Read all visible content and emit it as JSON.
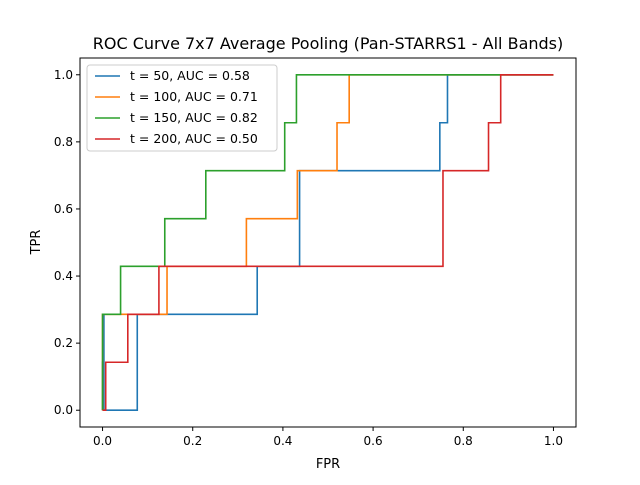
{
  "chart_data": {
    "type": "line",
    "title": "ROC Curve 7x7 Average Pooling (Pan-STARRS1 - All Bands)",
    "xlabel": "FPR",
    "ylabel": "TPR",
    "xlim": [
      -0.05,
      1.05
    ],
    "ylim": [
      -0.05,
      1.05
    ],
    "xticks": [
      0.0,
      0.2,
      0.4,
      0.6,
      0.8,
      1.0
    ],
    "yticks": [
      0.0,
      0.2,
      0.4,
      0.6,
      0.8,
      1.0
    ],
    "xtick_labels": [
      "0.0",
      "0.2",
      "0.4",
      "0.6",
      "0.8",
      "1.0"
    ],
    "ytick_labels": [
      "0.0",
      "0.2",
      "0.4",
      "0.6",
      "0.8",
      "1.0"
    ],
    "grid": false,
    "legend_position": "top-left",
    "series": [
      {
        "name": "t = 50, AUC = 0.58",
        "color": "#1f77b4",
        "points": [
          [
            0,
            0
          ],
          [
            0,
            0.143
          ],
          [
            0.003,
            0.143
          ],
          [
            0.003,
            0.286
          ],
          [
            0.003,
            0
          ],
          [
            0.077,
            0
          ],
          [
            0.077,
            0.286
          ],
          [
            0.343,
            0.286
          ],
          [
            0.343,
            0.429
          ],
          [
            0.437,
            0.429
          ],
          [
            0.437,
            0.714
          ],
          [
            0.748,
            0.714
          ],
          [
            0.748,
            0.857
          ],
          [
            0.765,
            0.857
          ],
          [
            0.765,
            1.0
          ],
          [
            1.0,
            1.0
          ]
        ]
      },
      {
        "name": "t = 100, AUC = 0.71",
        "color": "#ff7f0e",
        "points": [
          [
            0,
            0
          ],
          [
            0,
            0.286
          ],
          [
            0.143,
            0.286
          ],
          [
            0.143,
            0.429
          ],
          [
            0.319,
            0.429
          ],
          [
            0.319,
            0.571
          ],
          [
            0.432,
            0.571
          ],
          [
            0.432,
            0.714
          ],
          [
            0.52,
            0.714
          ],
          [
            0.52,
            0.857
          ],
          [
            0.547,
            0.857
          ],
          [
            0.547,
            1.0
          ],
          [
            1.0,
            1.0
          ]
        ]
      },
      {
        "name": "t = 150, AUC = 0.82",
        "color": "#2ca02c",
        "points": [
          [
            0,
            0
          ],
          [
            0,
            0.286
          ],
          [
            0.04,
            0.286
          ],
          [
            0.04,
            0.429
          ],
          [
            0.138,
            0.429
          ],
          [
            0.138,
            0.571
          ],
          [
            0.229,
            0.571
          ],
          [
            0.229,
            0.714
          ],
          [
            0.404,
            0.714
          ],
          [
            0.404,
            0.857
          ],
          [
            0.43,
            0.857
          ],
          [
            0.43,
            1.0
          ],
          [
            1.0,
            1.0
          ]
        ]
      },
      {
        "name": "t = 200, AUC = 0.50",
        "color": "#d62728",
        "points": [
          [
            0,
            0
          ],
          [
            0.007,
            0
          ],
          [
            0.007,
            0.143
          ],
          [
            0.056,
            0.143
          ],
          [
            0.056,
            0.286
          ],
          [
            0.125,
            0.286
          ],
          [
            0.125,
            0.429
          ],
          [
            0.755,
            0.429
          ],
          [
            0.755,
            0.714
          ],
          [
            0.856,
            0.714
          ],
          [
            0.856,
            0.857
          ],
          [
            0.883,
            0.857
          ],
          [
            0.883,
            1.0
          ],
          [
            1.0,
            1.0
          ]
        ]
      }
    ]
  }
}
